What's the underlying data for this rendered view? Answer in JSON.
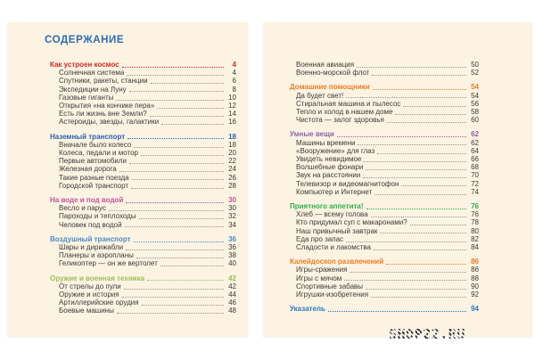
{
  "watermark_text": "SHOP22.RU",
  "colors": {
    "page_bg": "#fcf3e3",
    "canvas_bg": "#ffffff",
    "title_blue": "#2e6cb5",
    "body_text": "#3d3a37",
    "leader_gray": "#9a948c"
  },
  "left_page": {
    "title": "СОДЕРЖАНИЕ",
    "sections": [
      {
        "title": "Как устроен космос",
        "page": "4",
        "color": "#e1261d",
        "items": [
          {
            "label": "Солнечная система",
            "page": "4"
          },
          {
            "label": "Спутники, ракеты, станции",
            "page": "6"
          },
          {
            "label": "Экспедиции на Луну",
            "page": "8"
          },
          {
            "label": "Газовые гиганты",
            "page": "10"
          },
          {
            "label": "Открытия «на кончике пера»",
            "page": "12"
          },
          {
            "label": "Есть ли жизнь вне Земли?",
            "page": "14"
          },
          {
            "label": "Астероиды, звезды, галактики",
            "page": "16"
          }
        ]
      },
      {
        "title": "Наземный транспорт",
        "page": "18",
        "color": "#2b62ad",
        "items": [
          {
            "label": "Вначале было колесо",
            "page": "18"
          },
          {
            "label": "Колеса, педали и мотор",
            "page": "20"
          },
          {
            "label": "Первые автомобили",
            "page": "22"
          },
          {
            "label": "Железная дорога",
            "page": "24"
          },
          {
            "label": "Такие разные поезда",
            "page": "26"
          },
          {
            "label": "Городской транспорт",
            "page": "28"
          }
        ]
      },
      {
        "title": "На воде и под водой",
        "page": "30",
        "color": "#c3539b",
        "items": [
          {
            "label": "Весло и парус",
            "page": "30"
          },
          {
            "label": "Пароходы и теплоходы",
            "page": "32"
          },
          {
            "label": "Человек под водой",
            "page": "34"
          }
        ]
      },
      {
        "title": "Воздушный транспорт",
        "page": "36",
        "color": "#4a8cc4",
        "items": [
          {
            "label": "Шары и дирижабли",
            "page": "36"
          },
          {
            "label": "Планеры и аэропланы",
            "page": "38"
          },
          {
            "label": "Геликоптер — он же вертолет",
            "page": "40"
          }
        ]
      },
      {
        "title": "Оружие и военная техника",
        "page": "42",
        "color": "#9cc04f",
        "items": [
          {
            "label": "От стрелы до пули",
            "page": "42"
          },
          {
            "label": "Оружие и история",
            "page": "44"
          },
          {
            "label": "Артиллерийские орудия",
            "page": "46"
          },
          {
            "label": "Боевые машины",
            "page": "48"
          }
        ]
      }
    ]
  },
  "right_page": {
    "sections": [
      {
        "title": "",
        "page": "",
        "color": "#3d3a37",
        "items": [
          {
            "label": "Военная авиация",
            "page": "50"
          },
          {
            "label": "Военно-морской флот",
            "page": "52"
          }
        ]
      },
      {
        "title": "Домашние помощники",
        "page": "54",
        "color": "#f07c23",
        "items": [
          {
            "label": "Да будет свет!",
            "page": "54"
          },
          {
            "label": "Стиральная машина и пылесос",
            "page": "56"
          },
          {
            "label": "Тепло и холод в нашем доме",
            "page": "58"
          },
          {
            "label": "Чистота — залог здоровья",
            "page": "60"
          }
        ]
      },
      {
        "title": "Умные вещи",
        "page": "62",
        "color": "#8e62a8",
        "items": [
          {
            "label": "Машины времени",
            "page": "62"
          },
          {
            "label": "«Вооружение» для глаз",
            "page": "64"
          },
          {
            "label": "Увидеть невидимое",
            "page": "66"
          },
          {
            "label": "Волшебные фонари",
            "page": "68"
          },
          {
            "label": "Звук на расстоянии",
            "page": "70"
          },
          {
            "label": "Телевизор и видеомагнитофон",
            "page": "72"
          },
          {
            "label": "Компьютер и Интернет",
            "page": "74"
          }
        ]
      },
      {
        "title": "Приятного аппетита!",
        "page": "76",
        "color": "#2fae4e",
        "items": [
          {
            "label": "Хлеб — всему голова",
            "page": "76"
          },
          {
            "label": "Кто придумал суп с макаронами?",
            "page": "78"
          },
          {
            "label": "Наш привычный завтрак",
            "page": "80"
          },
          {
            "label": "Еда про запас",
            "page": "82"
          },
          {
            "label": "Сладости и лакомства",
            "page": "84"
          }
        ]
      },
      {
        "title": "Калейдоскоп развлечений",
        "page": "86",
        "color": "#f07c23",
        "items": [
          {
            "label": "Игры-сражения",
            "page": "86"
          },
          {
            "label": "Игры с мячом",
            "page": "88"
          },
          {
            "label": "Спортивные забавы",
            "page": "90"
          },
          {
            "label": "Игрушки-изобретения",
            "page": "92"
          }
        ]
      },
      {
        "title": "Указатель",
        "page": "94",
        "color": "#2479c2",
        "items": []
      }
    ]
  }
}
